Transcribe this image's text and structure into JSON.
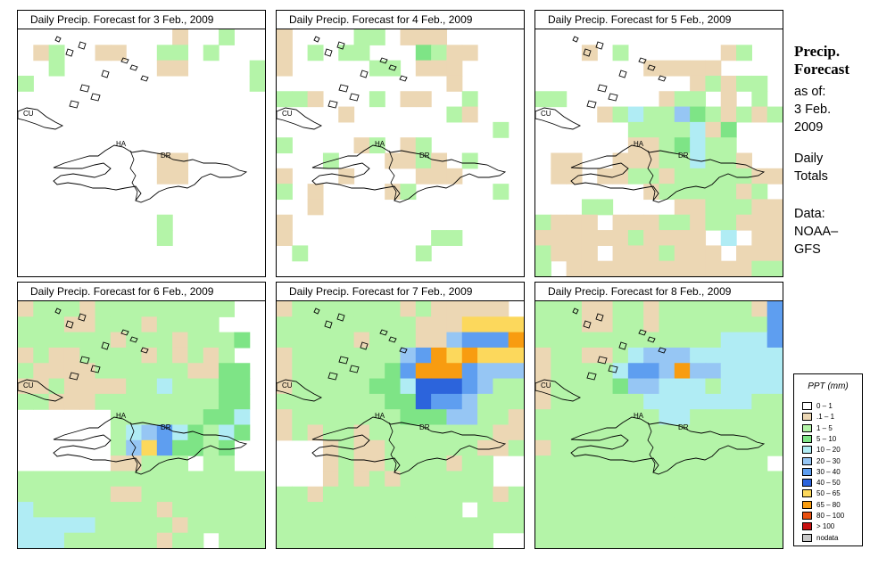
{
  "panels": [
    {
      "title": "Daily Precip. Forecast for  3 Feb., 2009",
      "field": "field_3feb"
    },
    {
      "title": "Daily Precip. Forecast for  4 Feb., 2009",
      "field": "field_4feb"
    },
    {
      "title": "Daily Precip. Forecast for  5 Feb., 2009",
      "field": "field_5feb"
    },
    {
      "title": "Daily Precip. Forecast for  6 Feb., 2009",
      "field": "field_6feb"
    },
    {
      "title": "Daily Precip. Forecast for  7 Feb., 2009",
      "field": "field_7feb"
    },
    {
      "title": "Daily Precip. Forecast for  8 Feb., 2009",
      "field": "field_8feb"
    }
  ],
  "map_labels": {
    "cu": "CU",
    "ha": "HA",
    "dr": "DR"
  },
  "side": {
    "title_line1": "Precip.",
    "title_line2": "Forecast",
    "asof": "as of:",
    "date_line1": "3 Feb.",
    "date_line2": "2009",
    "daily": "Daily",
    "totals": "Totals",
    "data_line1": "Data:",
    "data_line2": "NOAA–",
    "data_line3": "GFS"
  },
  "legend": {
    "title": "PPT (mm)",
    "items": [
      {
        "label": "0 – 1",
        "color": "#ffffff"
      },
      {
        "label": ".1 – 1",
        "color": "#ecd7b4"
      },
      {
        "label": "1 – 5",
        "color": "#b4f4a8"
      },
      {
        "label": "5 – 10",
        "color": "#7ee486"
      },
      {
        "label": "10 – 20",
        "color": "#b0ecf4"
      },
      {
        "label": "20 – 30",
        "color": "#96c6f4"
      },
      {
        "label": "30 – 40",
        "color": "#5e9ef0"
      },
      {
        "label": "40 – 50",
        "color": "#2c64dc"
      },
      {
        "label": "50 – 65",
        "color": "#fcd85c"
      },
      {
        "label": "65 – 80",
        "color": "#f89c10"
      },
      {
        "label": "80 – 100",
        "color": "#e85010"
      },
      {
        "label": "> 100",
        "color": "#c81010"
      },
      {
        "label": "nodata",
        "color": "#c8c8c8"
      }
    ]
  },
  "precip_fields": {
    "field_3feb": [
      "0000000000100200",
      "0120011002202000",
      "0020000001100002",
      "2000000000000002",
      "0000000000000000",
      "0000000000000000",
      "0000000000000000",
      "0000000000000000",
      "0000000001100000",
      "0000000001100000",
      "0000000000000000",
      "0000000000000000",
      "0000000002000000",
      "0000000002000000",
      "0000000000000000",
      "0000000000000000"
    ],
    "field_4feb": [
      "1000022011100000",
      "1020220003211000",
      "1000002201110000",
      "0000000000010000",
      "2210002011002000",
      "0000100000021000",
      "0000000000000020",
      "2000012012000000",
      "0002000112102000",
      "1000100001110000",
      "2010000120000020",
      "0010000000000000",
      "1000000000000000",
      "1000000000220000",
      "0200000002000000",
      "0000000000000000"
    ],
    "field_5feb": [
      "0000000000000000",
      "0001020000001200",
      "0000000111110000",
      "0000000000121220",
      "2200000012201020",
      "0000124225321212",
      "0000002222413000",
      "0000001123422000",
      "0110011122422100",
      "0110112212222211",
      "0000000122222120",
      "0002200001122211",
      "2111011122122111",
      "1111112111104011",
      "2111011121110111",
      "2011111111111122"
    ],
    "field_6feb": [
      "1222122222222200",
      "2221122212222000",
      "2222221222122230",
      "1211222212121200",
      "2111122222211330",
      "1121111224222330",
      "2211122222222330",
      "0000002222223340",
      "0000002456432430",
      "0000002586332300",
      "0000001122202200",
      "2222222222222222",
      "2222221122222222",
      "4222222221222222",
      "4444422222122222",
      "4442222221220222"
    ],
    "field_7feb": [
      "1222222212111110",
      "2222222221118888",
      "2222212221156669",
      "1222222256989888",
      "1222222369996555",
      "1222223347776522",
      "2222222337665222",
      "1222222233355221",
      "1212212222222211",
      "0001211222222112",
      "0001211222212200",
      "0001212122222200",
      "2212222222222212",
      "2222222222220222",
      "2222222222222222",
      "2222222222222200"
    ],
    "field_8feb": [
      "2221122122222216",
      "2221122122222226",
      "2222222222224446",
      "1221124555444444",
      "1222246659554444",
      "1222235544424444",
      "1222222444444422",
      "2222222244222222",
      "2222222222222222",
      "1222222222222222",
      "2222222222222220",
      "2222222222222222",
      "2222222222222222",
      "2222222222222222",
      "2222222222222222",
      "2222222222222222"
    ]
  }
}
